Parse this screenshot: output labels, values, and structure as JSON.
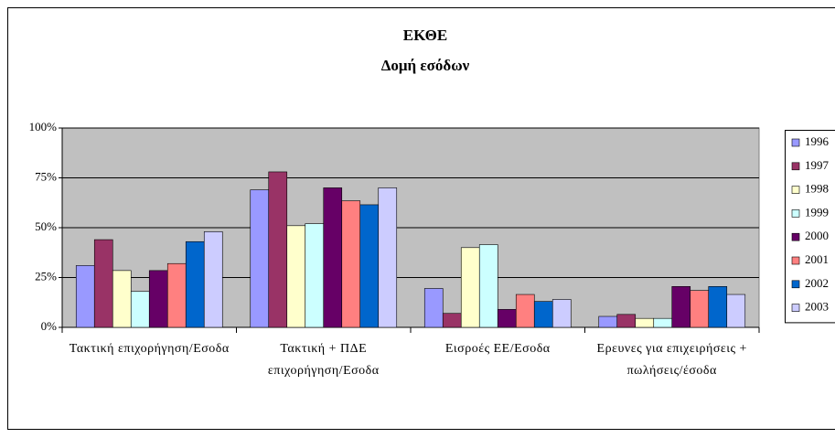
{
  "chart_data": {
    "type": "bar",
    "title": "ΕΚΘΕ",
    "subtitle": "Δομή εσόδων",
    "categories": [
      "Τακτική επιχορήγηση/Εσοδα",
      "Τακτική + ΠΔΕ επιχορήγηση/Εσοδα",
      "Εισροές ΕΕ/Εσοδα",
      "Ερευνες για επιχειρήσεις + πωλήσεις/έσοδα"
    ],
    "series": [
      {
        "name": "1996",
        "color": "#9999ff",
        "values": [
          31,
          69,
          19.5,
          5.5
        ]
      },
      {
        "name": "1997",
        "color": "#993366",
        "values": [
          44,
          78,
          7,
          6.5
        ]
      },
      {
        "name": "1998",
        "color": "#ffffcc",
        "values": [
          28.5,
          51,
          40,
          4.5
        ]
      },
      {
        "name": "1999",
        "color": "#ccffff",
        "values": [
          18,
          52,
          41.5,
          4.5
        ]
      },
      {
        "name": "2000",
        "color": "#660066",
        "values": [
          28.5,
          70,
          9,
          20.5
        ]
      },
      {
        "name": "2001",
        "color": "#ff8080",
        "values": [
          32,
          63.5,
          16.5,
          18.5
        ]
      },
      {
        "name": "2002",
        "color": "#0066cc",
        "values": [
          43,
          61.5,
          13,
          20.5
        ]
      },
      {
        "name": "2003",
        "color": "#ccccff",
        "values": [
          48,
          70,
          14,
          16.5
        ]
      }
    ],
    "ylim": [
      0,
      100
    ],
    "yticks": [
      {
        "value": 0,
        "label": "0%"
      },
      {
        "value": 25,
        "label": "25%"
      },
      {
        "value": 50,
        "label": "50%"
      },
      {
        "value": 75,
        "label": "75%"
      },
      {
        "value": 100,
        "label": "100%"
      }
    ],
    "grid": true,
    "legend": "right"
  }
}
